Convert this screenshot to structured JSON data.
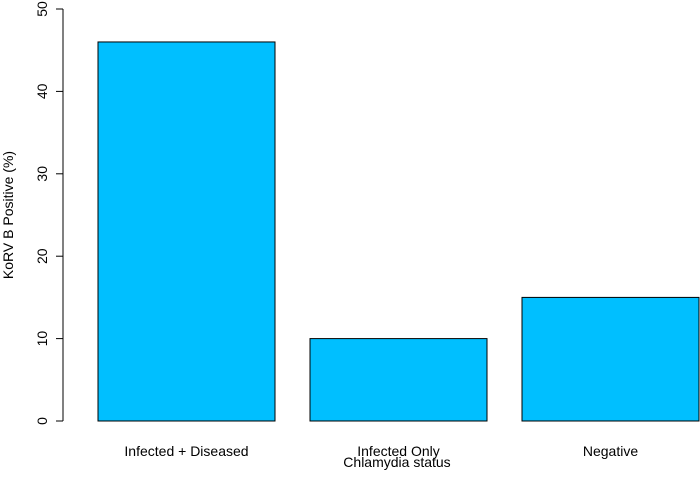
{
  "chart_data": {
    "type": "bar",
    "categories": [
      "Infected + Diseased",
      "Infected Only",
      "Negative"
    ],
    "values": [
      46,
      10,
      15
    ],
    "title": "",
    "xlabel": "Chlamydia status",
    "ylabel": "KoRV B Positive (%)",
    "ylim": [
      0,
      50
    ],
    "yticks": [
      0,
      10,
      20,
      30,
      40,
      50
    ],
    "bar_color": "#00BFFF",
    "bar_border_color": "#000000",
    "grid": false,
    "legend": "none"
  }
}
